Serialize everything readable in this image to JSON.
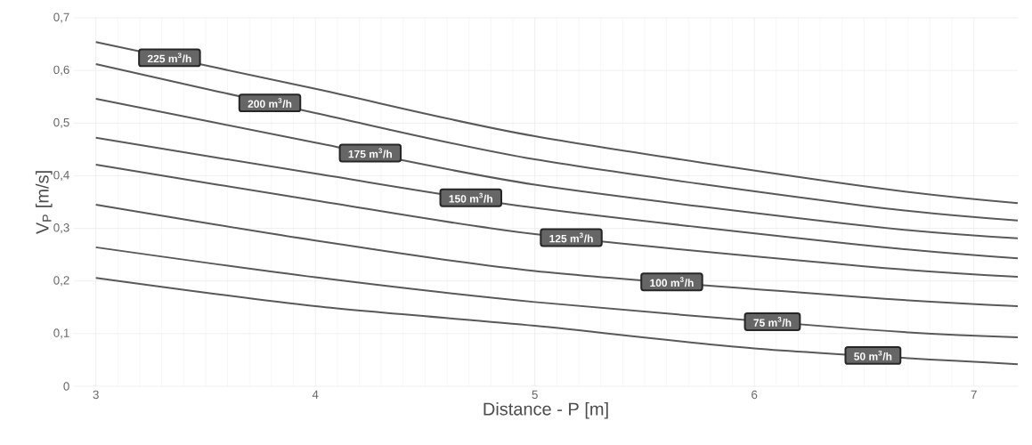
{
  "chart_data": {
    "type": "line",
    "xlabel": "Distance - P [m]",
    "ylabel": "V$_{P}$  [m/s]",
    "xlim": [
      2.9,
      7.2
    ],
    "ylim": [
      0,
      0.7
    ],
    "xticks": [
      3,
      4,
      5,
      6,
      7
    ],
    "yticks": [
      0,
      {
        "value": 0.1,
        "label": "0,1"
      },
      {
        "value": 0.2,
        "label": "0,2"
      },
      {
        "value": 0.3,
        "label": "0,3"
      },
      {
        "value": 0.4,
        "label": "0,4"
      },
      {
        "value": 0.5,
        "label": "0,5"
      },
      {
        "value": 0.6,
        "label": "0,6"
      },
      {
        "value": 0.7,
        "label": "0,7"
      }
    ],
    "grid": true,
    "legend": false,
    "marker": "none",
    "line_style": "solid",
    "x": [
      3,
      4,
      5,
      6.5,
      7.2
    ],
    "series": [
      {
        "name": "225 m$^{3}$/h",
        "color": "#595959",
        "values": [
          0.654,
          0.565,
          0.475,
          0.38,
          0.348
        ]
      },
      {
        "name": "200 m$^{3}$/h",
        "color": "#595959",
        "values": [
          0.612,
          0.519,
          0.431,
          0.343,
          0.315
        ]
      },
      {
        "name": "175 m$^{3}$/h",
        "color": "#595959",
        "values": [
          0.546,
          0.463,
          0.383,
          0.305,
          0.281
        ]
      },
      {
        "name": "150 m$^{3}$/h",
        "color": "#595959",
        "values": [
          0.472,
          0.404,
          0.339,
          0.268,
          0.243
        ]
      },
      {
        "name": "125 m$^{3}$/h",
        "color": "#595959",
        "values": [
          0.421,
          0.353,
          0.289,
          0.228,
          0.208
        ]
      },
      {
        "name": "100 m$^{3}$/h",
        "color": "#595959",
        "values": [
          0.345,
          0.277,
          0.219,
          0.169,
          0.152
        ]
      },
      {
        "name": "75 m$^{3}$/h",
        "color": "#595959",
        "values": [
          0.264,
          0.207,
          0.16,
          0.108,
          0.093
        ]
      },
      {
        "name": "50 m$^{3}$/h",
        "color": "#595959",
        "x": [
          3,
          4,
          5,
          6,
          7.2
        ],
        "values": [
          0.206,
          0.152,
          0.115,
          0.072,
          0.042
        ]
      }
    ]
  }
}
